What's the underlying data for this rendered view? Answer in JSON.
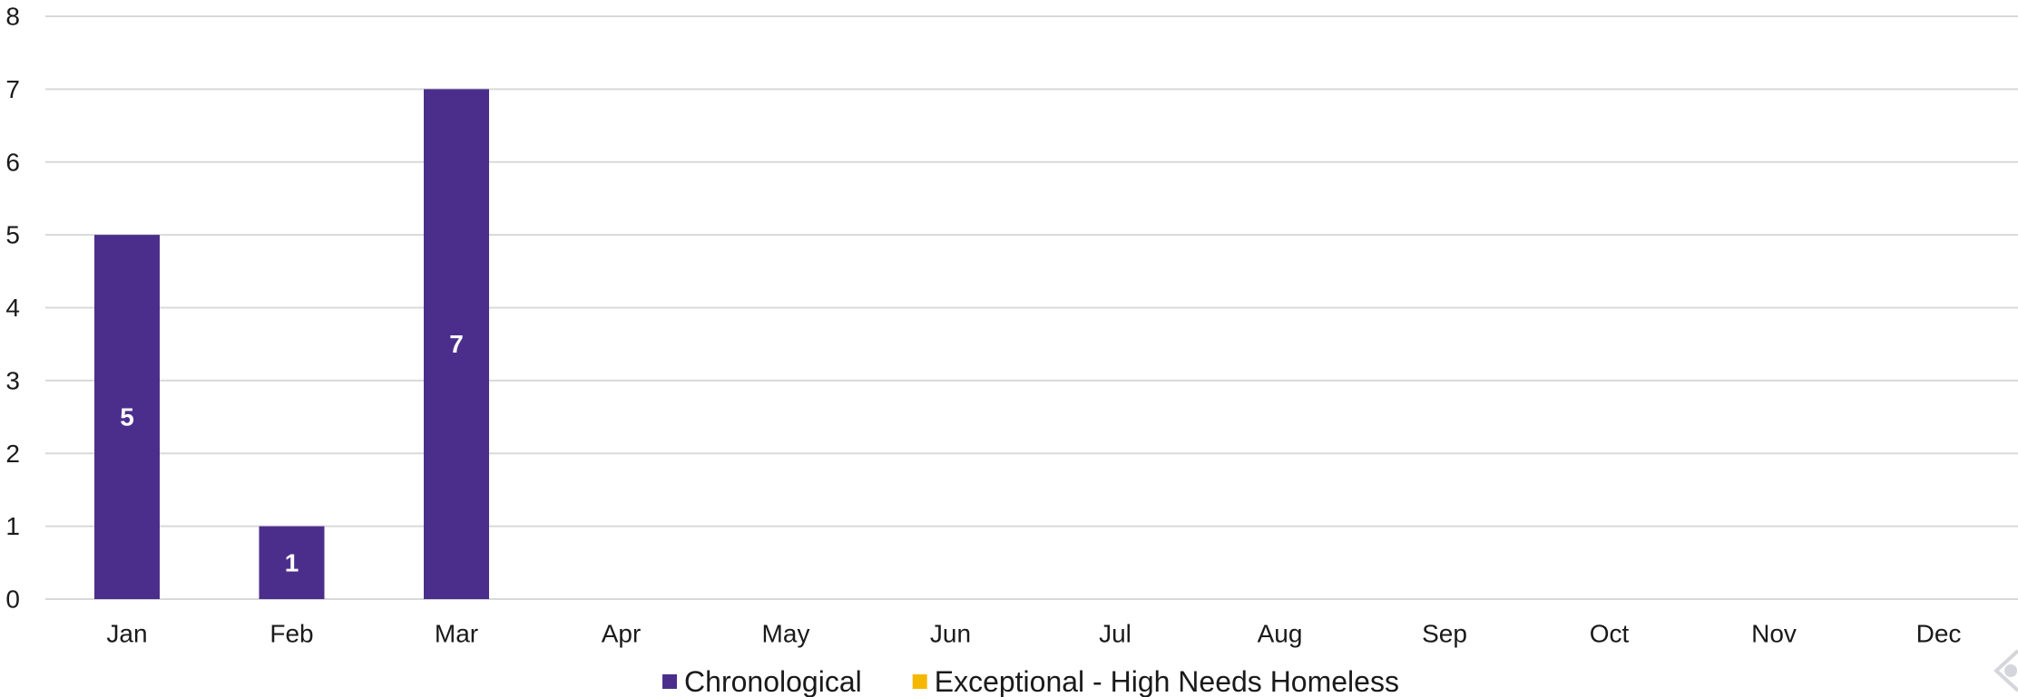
{
  "chart_data": {
    "type": "bar",
    "categories": [
      "Jan",
      "Feb",
      "Mar",
      "Apr",
      "May",
      "Jun",
      "Jul",
      "Aug",
      "Sep",
      "Oct",
      "Nov",
      "Dec"
    ],
    "series": [
      {
        "name": "Chronological",
        "color": "#4b2e8c",
        "values": [
          5,
          1,
          7,
          null,
          null,
          null,
          null,
          null,
          null,
          null,
          null,
          null
        ]
      },
      {
        "name": "Exceptional - High Needs Homeless",
        "color": "#f5b800",
        "values": [
          null,
          null,
          null,
          null,
          null,
          null,
          null,
          null,
          null,
          null,
          null,
          null
        ]
      }
    ],
    "ylim": [
      0,
      8
    ],
    "yticks": [
      0,
      1,
      2,
      3,
      4,
      5,
      6,
      7,
      8
    ],
    "grid": true,
    "legend_position": "bottom",
    "data_labels": true,
    "gridline_color": "#d9d9d9"
  }
}
